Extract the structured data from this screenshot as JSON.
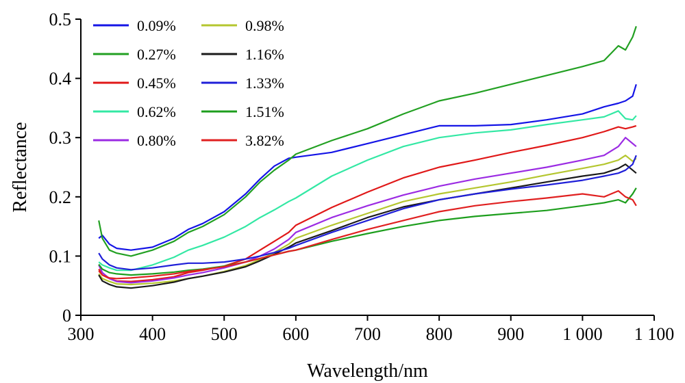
{
  "chart_data": {
    "type": "line",
    "title": "",
    "xlabel": "Wavelength/nm",
    "ylabel": "Reflectance",
    "xlim": [
      300,
      1100
    ],
    "ylim": [
      0,
      0.5
    ],
    "x_ticks": [
      300,
      400,
      500,
      600,
      700,
      800,
      900,
      1000,
      1100
    ],
    "x_tick_labels": [
      "300",
      "400",
      "500",
      "600",
      "700",
      "800",
      "900",
      "1 000",
      "1 100"
    ],
    "y_ticks": [
      0,
      0.1,
      0.2,
      0.3,
      0.4,
      0.5
    ],
    "y_tick_labels": [
      "0",
      "0.1",
      "0.2",
      "0.3",
      "0.4",
      "0.5"
    ],
    "grid": false,
    "legend_position": "top-left",
    "x": [
      325,
      330,
      340,
      350,
      370,
      400,
      430,
      450,
      470,
      500,
      530,
      550,
      570,
      590,
      600,
      650,
      700,
      750,
      800,
      850,
      900,
      950,
      1000,
      1030,
      1050,
      1060,
      1070,
      1075
    ],
    "series": [
      {
        "name": "0.09%",
        "color": "#1414e6",
        "values": [
          0.13,
          0.135,
          0.12,
          0.113,
          0.11,
          0.115,
          0.13,
          0.145,
          0.155,
          0.175,
          0.205,
          0.23,
          0.252,
          0.265,
          0.267,
          0.275,
          0.29,
          0.305,
          0.32,
          0.32,
          0.322,
          0.33,
          0.34,
          0.352,
          0.358,
          0.362,
          0.37,
          0.39
        ]
      },
      {
        "name": "0.27%",
        "color": "#22a022",
        "values": [
          0.16,
          0.13,
          0.11,
          0.105,
          0.1,
          0.11,
          0.125,
          0.14,
          0.15,
          0.17,
          0.2,
          0.225,
          0.245,
          0.262,
          0.272,
          0.295,
          0.315,
          0.34,
          0.362,
          0.375,
          0.39,
          0.405,
          0.42,
          0.43,
          0.455,
          0.448,
          0.47,
          0.488
        ]
      },
      {
        "name": "0.45%",
        "color": "#e01818",
        "values": [
          0.078,
          0.068,
          0.062,
          0.058,
          0.057,
          0.06,
          0.065,
          0.072,
          0.076,
          0.083,
          0.095,
          0.11,
          0.125,
          0.14,
          0.152,
          0.182,
          0.208,
          0.232,
          0.25,
          0.262,
          0.275,
          0.287,
          0.3,
          0.31,
          0.318,
          0.315,
          0.318,
          0.32
        ]
      },
      {
        "name": "0.62%",
        "color": "#33e8a4",
        "values": [
          0.09,
          0.085,
          0.08,
          0.076,
          0.076,
          0.085,
          0.098,
          0.11,
          0.118,
          0.132,
          0.15,
          0.165,
          0.178,
          0.192,
          0.198,
          0.235,
          0.262,
          0.285,
          0.3,
          0.308,
          0.313,
          0.322,
          0.33,
          0.335,
          0.345,
          0.332,
          0.33,
          0.337
        ]
      },
      {
        "name": "0.80%",
        "color": "#9b2be3",
        "values": [
          0.085,
          0.072,
          0.062,
          0.057,
          0.055,
          0.058,
          0.063,
          0.068,
          0.072,
          0.08,
          0.09,
          0.1,
          0.112,
          0.128,
          0.14,
          0.165,
          0.185,
          0.203,
          0.218,
          0.23,
          0.24,
          0.25,
          0.262,
          0.27,
          0.285,
          0.3,
          0.29,
          0.285
        ]
      },
      {
        "name": "0.98%",
        "color": "#b4c62e",
        "values": [
          0.07,
          0.062,
          0.057,
          0.053,
          0.052,
          0.054,
          0.058,
          0.062,
          0.066,
          0.074,
          0.084,
          0.094,
          0.106,
          0.12,
          0.13,
          0.152,
          0.172,
          0.192,
          0.205,
          0.215,
          0.225,
          0.237,
          0.248,
          0.255,
          0.262,
          0.27,
          0.26,
          0.265
        ]
      },
      {
        "name": "1.16%",
        "color": "#1a1a1a",
        "values": [
          0.068,
          0.058,
          0.052,
          0.048,
          0.046,
          0.05,
          0.056,
          0.062,
          0.066,
          0.073,
          0.082,
          0.092,
          0.103,
          0.115,
          0.122,
          0.143,
          0.165,
          0.183,
          0.195,
          0.205,
          0.215,
          0.225,
          0.235,
          0.24,
          0.248,
          0.255,
          0.245,
          0.24
        ]
      },
      {
        "name": "1.33%",
        "color": "#1f1fd8",
        "values": [
          0.105,
          0.095,
          0.085,
          0.08,
          0.077,
          0.08,
          0.085,
          0.088,
          0.088,
          0.09,
          0.095,
          0.1,
          0.106,
          0.113,
          0.118,
          0.14,
          0.16,
          0.18,
          0.195,
          0.205,
          0.213,
          0.22,
          0.228,
          0.235,
          0.24,
          0.245,
          0.255,
          0.27
        ]
      },
      {
        "name": "1.51%",
        "color": "#1d9e1d",
        "values": [
          0.086,
          0.078,
          0.072,
          0.07,
          0.068,
          0.07,
          0.073,
          0.076,
          0.078,
          0.083,
          0.09,
          0.096,
          0.102,
          0.108,
          0.11,
          0.125,
          0.138,
          0.15,
          0.16,
          0.167,
          0.172,
          0.177,
          0.185,
          0.19,
          0.195,
          0.19,
          0.205,
          0.215
        ]
      },
      {
        "name": "3.82%",
        "color": "#e02020",
        "values": [
          0.075,
          0.068,
          0.063,
          0.062,
          0.063,
          0.066,
          0.07,
          0.074,
          0.077,
          0.082,
          0.09,
          0.096,
          0.102,
          0.108,
          0.11,
          0.128,
          0.145,
          0.16,
          0.175,
          0.185,
          0.192,
          0.198,
          0.205,
          0.2,
          0.21,
          0.2,
          0.195,
          0.185
        ]
      }
    ]
  }
}
